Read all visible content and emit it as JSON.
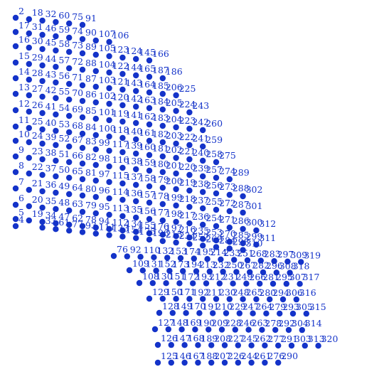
{
  "diagram": {
    "colors": {
      "node": "#1433c9",
      "label": "#1433c9",
      "background": "#ffffff"
    },
    "rows": [
      [
        "2",
        "18",
        "32",
        "60",
        "75",
        "91"
      ],
      [
        "17",
        "31",
        "46",
        "59",
        "74",
        "90",
        "107",
        "106"
      ],
      [
        "16",
        "30",
        "45",
        "58",
        "73",
        "89",
        "105",
        "123",
        "124",
        "145",
        "166"
      ],
      [
        "15",
        "29",
        "44",
        "57",
        "72",
        "88",
        "104",
        "122",
        "144",
        "165",
        "187",
        "186"
      ],
      [
        "14",
        "28",
        "43",
        "56",
        "71",
        "87",
        "103",
        "121",
        "143",
        "164",
        "185",
        "206",
        "225"
      ],
      [
        "13",
        "27",
        "42",
        "55",
        "70",
        "86",
        "102",
        "120",
        "142",
        "163",
        "184",
        "205",
        "224",
        "243"
      ],
      [
        "12",
        "26",
        "41",
        "54",
        "69",
        "85",
        "101",
        "119",
        "141",
        "162",
        "183",
        "204",
        "223",
        "242",
        "260"
      ],
      [
        "11",
        "25",
        "40",
        "53",
        "68",
        "84",
        "100",
        "118",
        "140",
        "161",
        "182",
        "203",
        "222",
        "241",
        "259"
      ],
      [
        "10",
        "24",
        "39",
        "52",
        "67",
        "83",
        "99",
        "117",
        "139",
        "160",
        "181",
        "202",
        "221",
        "240",
        "258",
        "275"
      ],
      [
        "9",
        "23",
        "38",
        "51",
        "66",
        "82",
        "98",
        "116",
        "138",
        "159",
        "180",
        "201",
        "220",
        "239",
        "257",
        "274",
        "289"
      ],
      [
        "8",
        "22",
        "37",
        "50",
        "65",
        "81",
        "97",
        "115",
        "137",
        "158",
        "179",
        "200",
        "219",
        "238",
        "256",
        "273",
        "288",
        "302"
      ],
      [
        "7",
        "21",
        "36",
        "49",
        "64",
        "80",
        "96",
        "114",
        "136",
        "157",
        "178",
        "199",
        "218",
        "237",
        "255",
        "272",
        "287",
        "301"
      ],
      [
        "6",
        "20",
        "35",
        "48",
        "63",
        "79",
        "95",
        "113",
        "135",
        "156",
        "177",
        "198",
        "217",
        "236",
        "254",
        "271",
        "286",
        "300",
        "312"
      ],
      [
        "5",
        "19",
        "34",
        "47",
        "62",
        "78",
        "94",
        "112",
        "134",
        "155",
        "176",
        "197",
        "216",
        "235",
        "253",
        "270",
        "285",
        "299",
        "311"
      ],
      [
        "4",
        "33",
        "61",
        "77",
        "93",
        "111",
        "133",
        "154",
        "175",
        "196",
        "215",
        "234",
        "252",
        "269",
        "284",
        "298",
        "310"
      ],
      [
        "76",
        "92",
        "110",
        "132",
        "153",
        "174",
        "195",
        "214",
        "233",
        "251",
        "268",
        "283",
        "297",
        "309",
        "319"
      ],
      [
        "109",
        "131",
        "152",
        "173",
        "194",
        "213",
        "232",
        "250",
        "267",
        "282",
        "296",
        "308",
        "318"
      ],
      [
        "108",
        "130",
        "151",
        "172",
        "193",
        "212",
        "231",
        "249",
        "266",
        "281",
        "295",
        "307",
        "317"
      ],
      [
        "129",
        "150",
        "171",
        "192",
        "211",
        "230",
        "248",
        "265",
        "280",
        "294",
        "306",
        "316"
      ],
      [
        "128",
        "149",
        "170",
        "191",
        "210",
        "229",
        "247",
        "264",
        "279",
        "293",
        "305",
        "315"
      ],
      [
        "127",
        "148",
        "169",
        "190",
        "209",
        "228",
        "246",
        "263",
        "278",
        "292",
        "304",
        "314"
      ],
      [
        "126",
        "147",
        "168",
        "189",
        "208",
        "227",
        "245",
        "262",
        "277",
        "291",
        "303",
        "313",
        "320"
      ],
      [
        "125",
        "146",
        "167",
        "188",
        "207",
        "226",
        "244",
        "261",
        "276",
        "290"
      ]
    ]
  }
}
